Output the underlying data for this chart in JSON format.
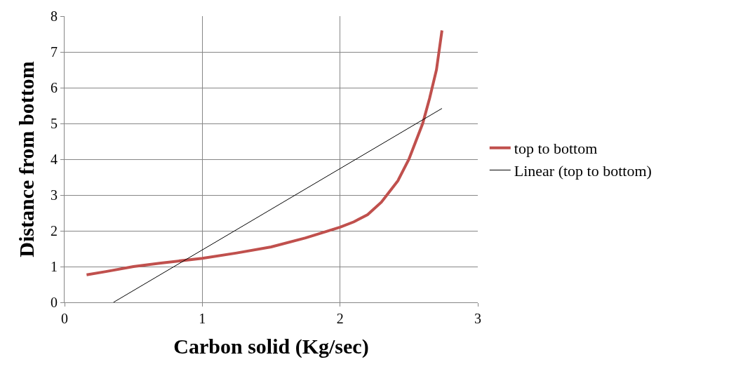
{
  "chart_data": {
    "type": "line",
    "xlabel": "Carbon solid (Kg/sec)",
    "ylabel": "Distance from bottom",
    "xlim": [
      0,
      3
    ],
    "xticks": [
      0,
      1,
      2,
      3
    ],
    "ylim": [
      0,
      8
    ],
    "yticks": [
      0,
      1,
      2,
      3,
      4,
      5,
      6,
      7,
      8
    ],
    "grid": true,
    "legend": "right",
    "marker": "none",
    "line_style": "solid",
    "series": [
      {
        "name": "top to bottom",
        "color": "#c0504d",
        "x": [
          0.16,
          0.3,
          0.5,
          0.7,
          1,
          1.25,
          1.5,
          1.75,
          2,
          2.1,
          2.2,
          2.3,
          2.35,
          2.42,
          2.5,
          2.55,
          2.6,
          2.65,
          2.7,
          2.74
        ],
        "values": [
          0.77,
          0.86,
          1.0,
          1.1,
          1.23,
          1.38,
          1.55,
          1.8,
          2.1,
          2.25,
          2.45,
          2.8,
          3.05,
          3.4,
          4.0,
          4.5,
          5.0,
          5.7,
          6.5,
          7.6
        ]
      },
      {
        "name": "Linear (top to bottom)",
        "type": "line",
        "color": "#000000",
        "x": [
          0.355,
          2.74
        ],
        "values": [
          0,
          5.42
        ]
      }
    ]
  }
}
